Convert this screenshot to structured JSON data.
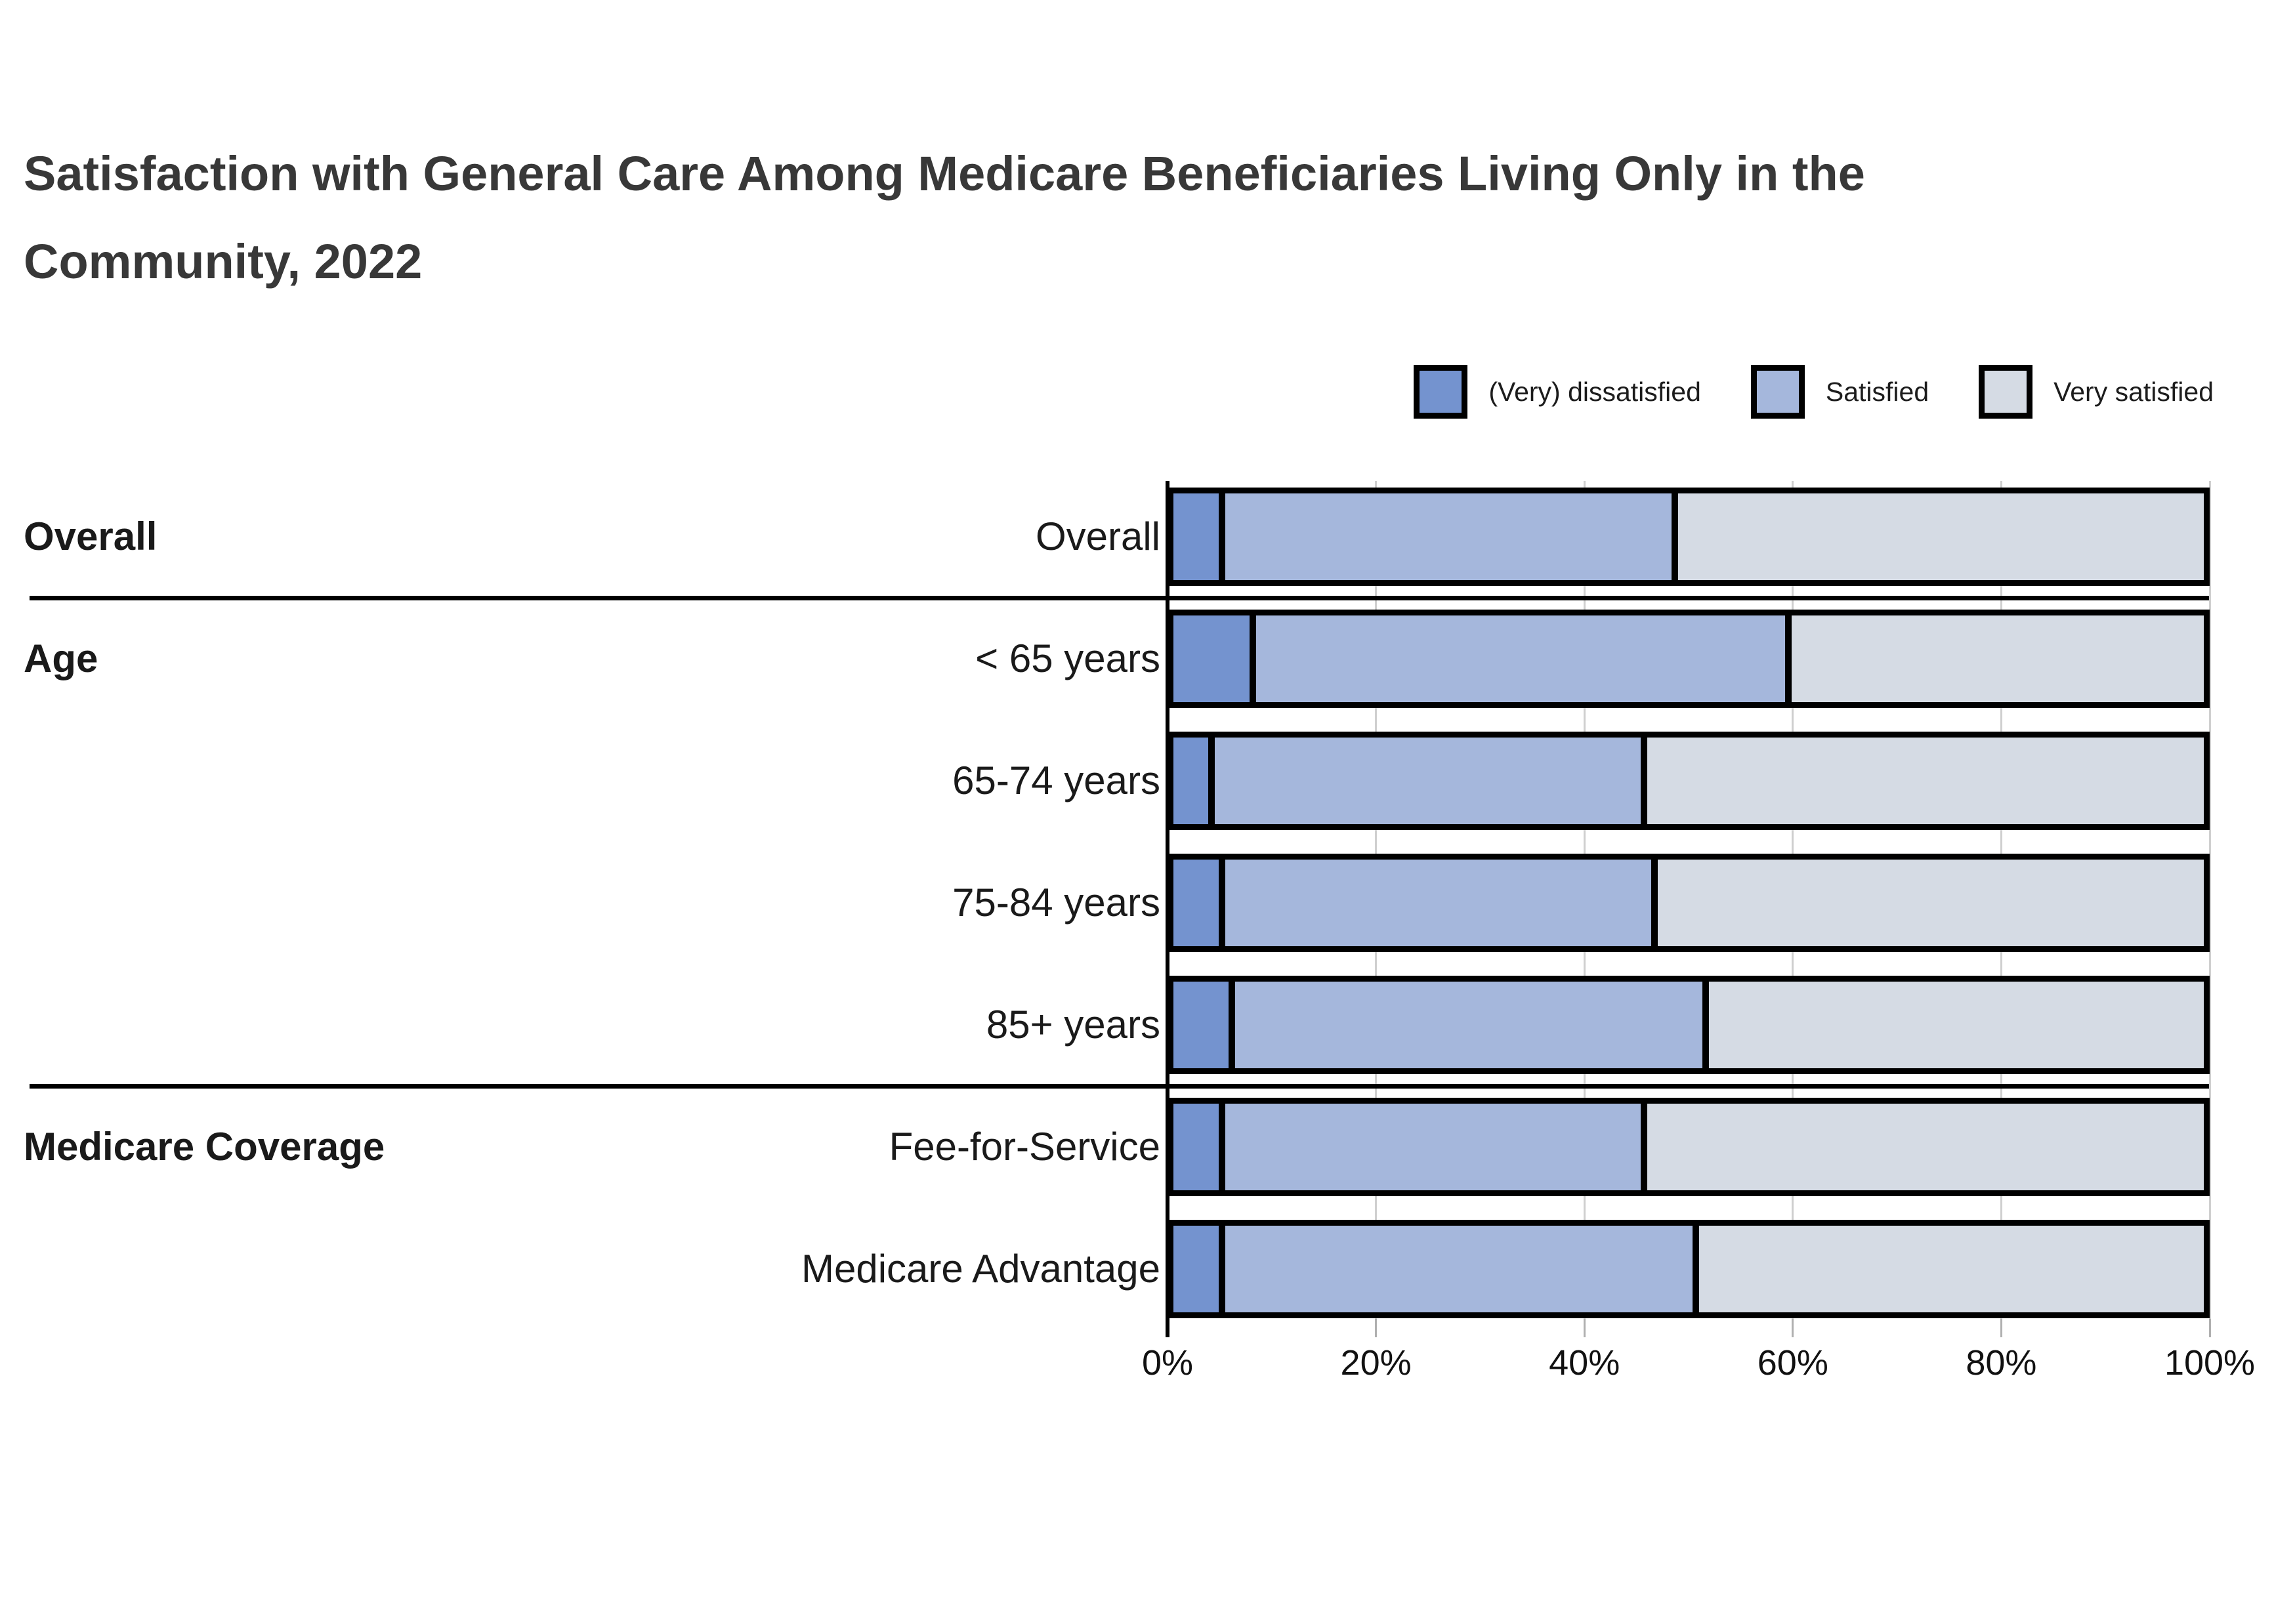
{
  "title_line1": "Satisfaction with General Care Among Medicare Beneficiaries Living Only in the",
  "title_line2": "Community, 2022",
  "legend": {
    "items": [
      {
        "label": "(Very) dissatisfied",
        "color": "#7493CF"
      },
      {
        "label": "Satisfied",
        "color": "#A5B7DC"
      },
      {
        "label": "Very satisfied",
        "color": "#D5DBE4"
      }
    ]
  },
  "chart_data": {
    "type": "bar",
    "orientation": "horizontal_stacked",
    "title": "Satisfaction with General Care Among Medicare Beneficiaries Living Only in the Community, 2022",
    "series": [
      "(Very) dissatisfied",
      "Satisfied",
      "Very satisfied"
    ],
    "colors": [
      "#7493CF",
      "#A5B7DC",
      "#D5DBE4"
    ],
    "x_ticks": [
      "0%",
      "20%",
      "40%",
      "60%",
      "80%",
      "100%"
    ],
    "xlim": [
      0,
      100
    ],
    "grid": "vertical",
    "groups": [
      "Overall",
      "Age",
      "Medicare Coverage"
    ],
    "rows": [
      {
        "group": "Overall",
        "label": "Overall",
        "values": [
          5,
          44,
          51
        ]
      },
      {
        "group": "Age",
        "label": "< 65 years",
        "values": [
          8,
          52,
          40
        ]
      },
      {
        "label": "65-74 years",
        "values": [
          4,
          42,
          54
        ]
      },
      {
        "label": "75-84 years",
        "values": [
          5,
          42,
          53
        ]
      },
      {
        "label": "85+ years",
        "values": [
          6,
          46,
          48
        ]
      },
      {
        "group": "Medicare Coverage",
        "label": "Fee-for-Service",
        "values": [
          5,
          41,
          54
        ]
      },
      {
        "label": "Medicare Advantage",
        "values": [
          5,
          46,
          49
        ]
      }
    ]
  }
}
